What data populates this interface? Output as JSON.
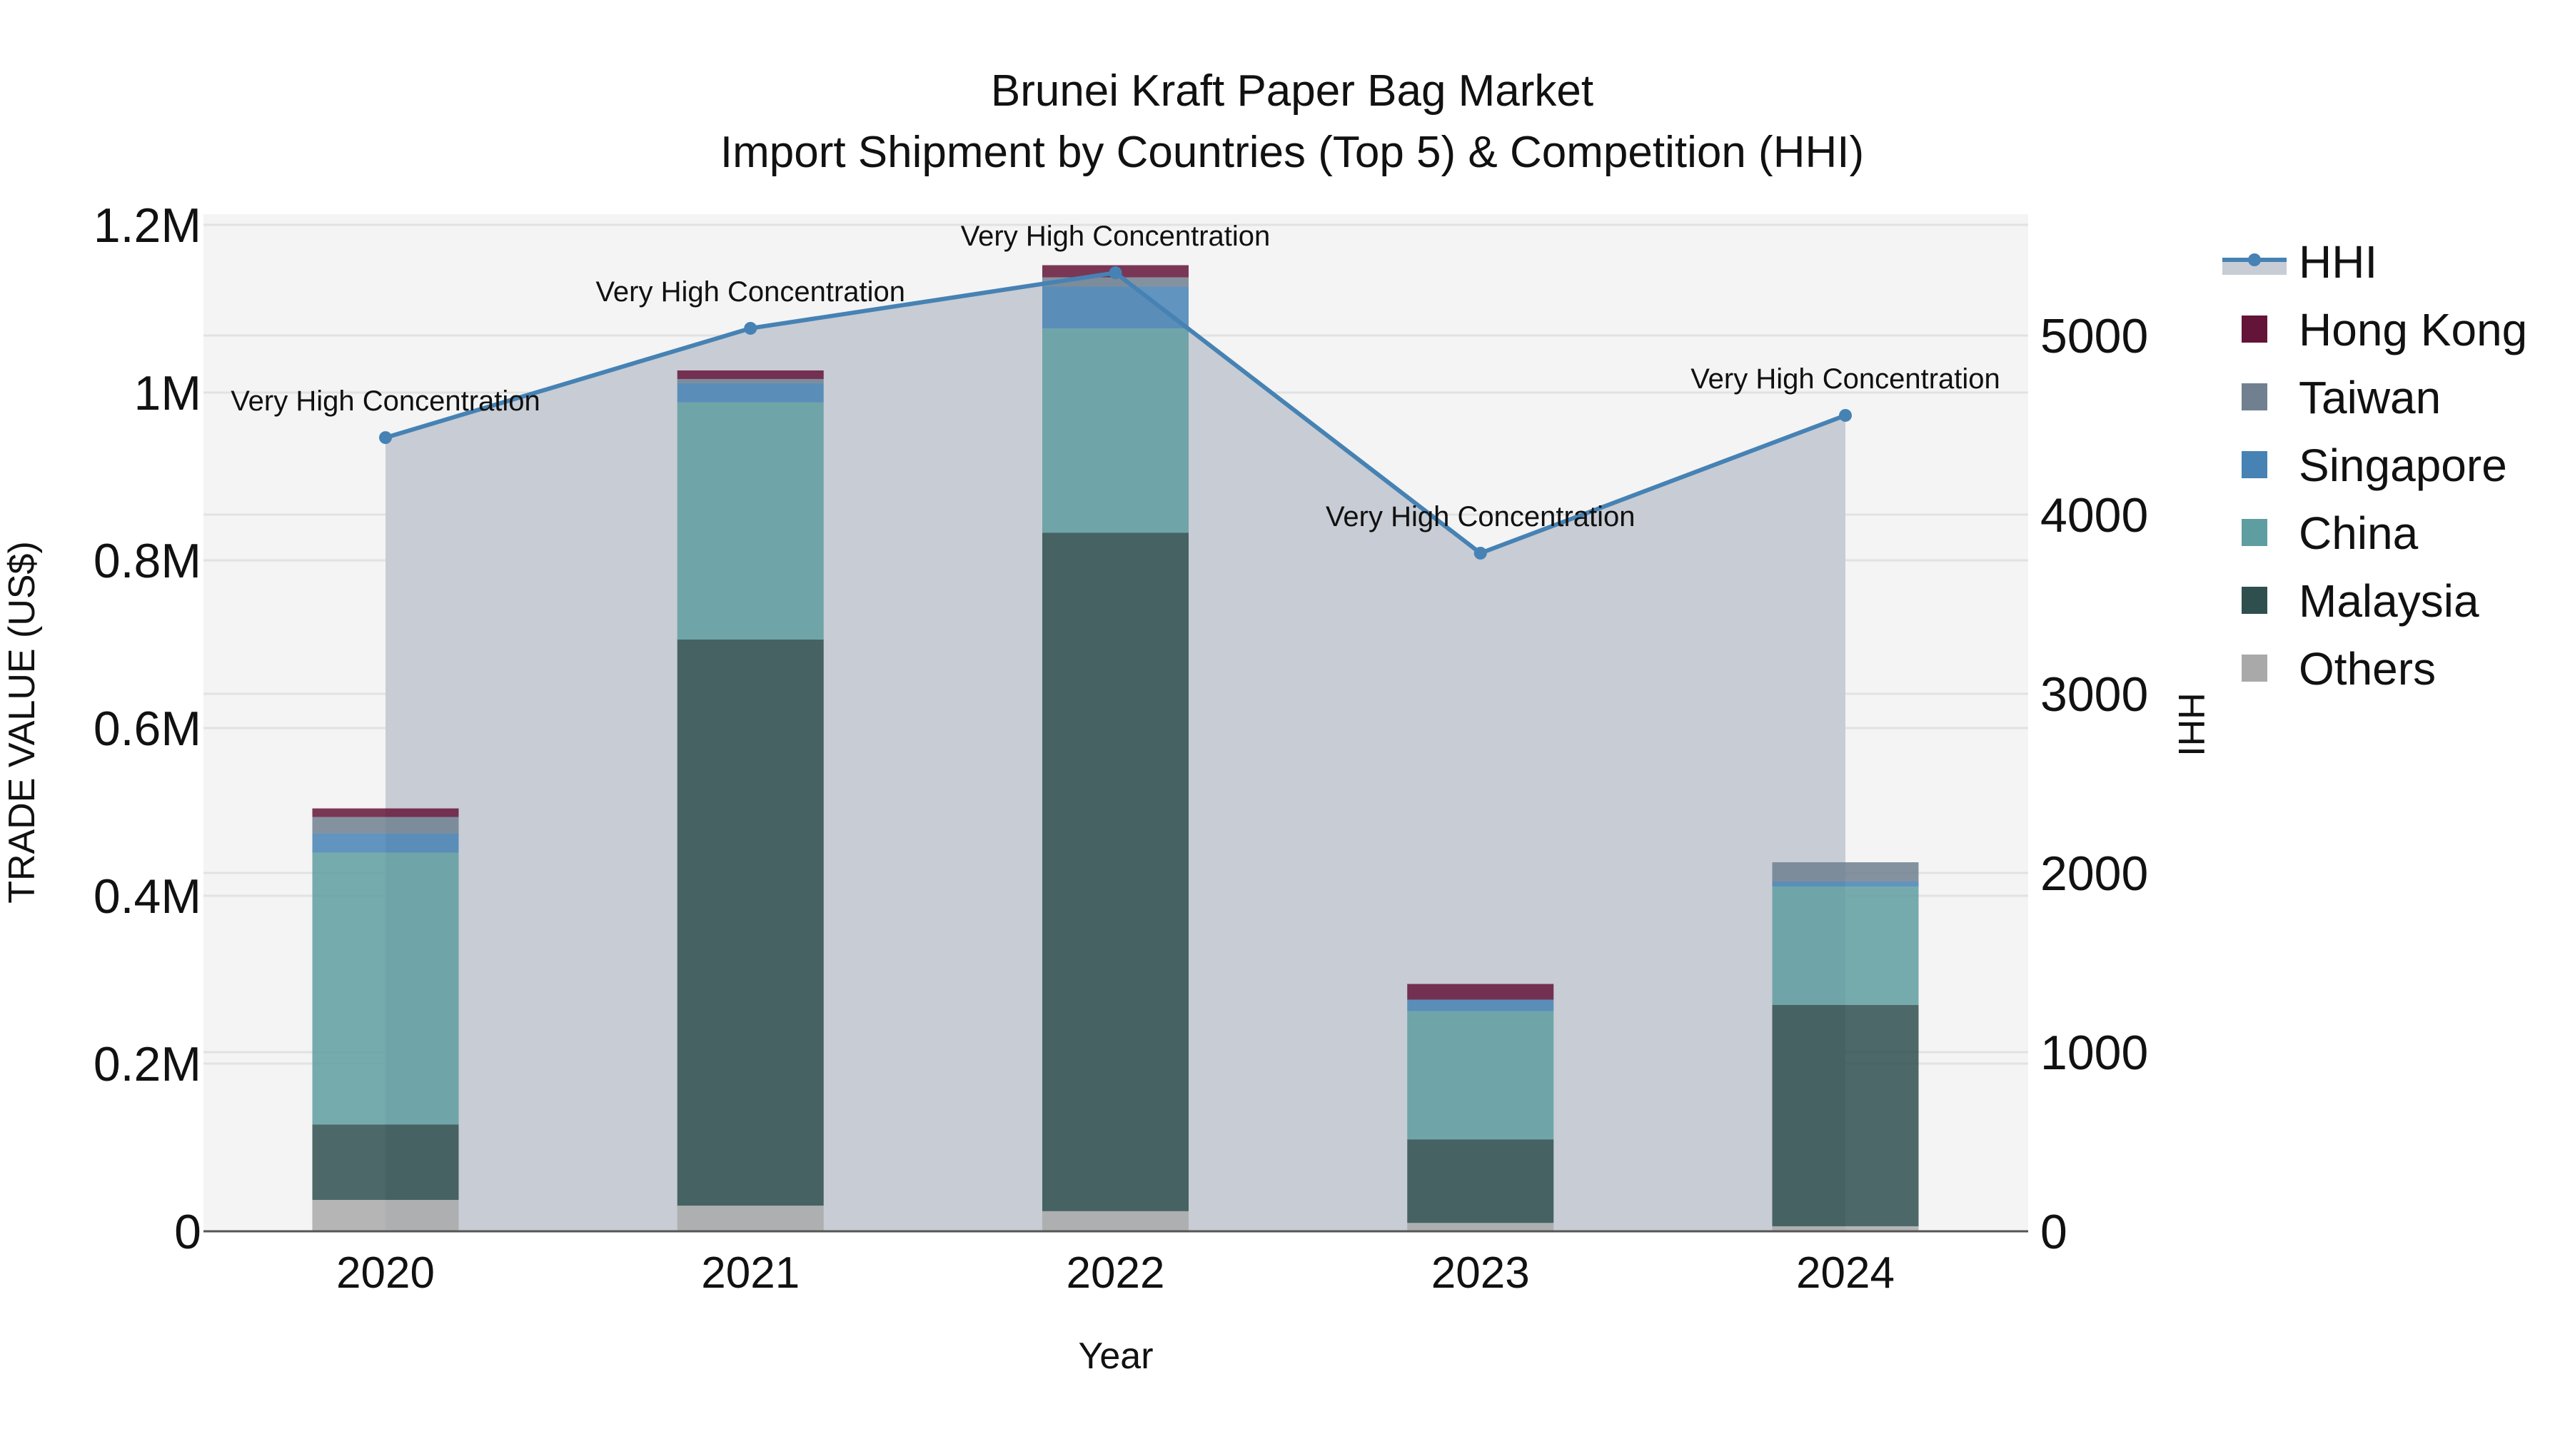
{
  "chart_data": {
    "type": "bar",
    "title": "Brunei Kraft Paper Bag Market",
    "subtitle": "Import Shipment by Countries (Top 5) & Competition (HHI)",
    "xlabel": "Year",
    "ylabel": "TRADE VALUE (US$)",
    "y2label": "HHI",
    "categories": [
      "2020",
      "2021",
      "2022",
      "2023",
      "2024"
    ],
    "ylim": [
      0,
      1200000
    ],
    "y2lim": [
      0,
      5680
    ],
    "y_ticks": [
      "0",
      "0.2M",
      "0.4M",
      "0.6M",
      "0.8M",
      "1M",
      "1.2M"
    ],
    "y_tick_values": [
      0,
      200000,
      400000,
      600000,
      800000,
      1000000,
      1200000
    ],
    "y2_ticks": [
      "0",
      "1000",
      "2000",
      "3000",
      "4000",
      "5000"
    ],
    "y2_tick_values": [
      0,
      1000,
      2000,
      3000,
      4000,
      5000
    ],
    "grid": true,
    "legend_position": "right",
    "stacked": true,
    "series": [
      {
        "name": "Others",
        "color": "#a9a9a9",
        "values": [
          37400,
          30600,
          24000,
          10000,
          6000
        ]
      },
      {
        "name": "Malaysia",
        "color": "#2f4f4f",
        "values": [
          90000,
          675000,
          809000,
          99600,
          264000
        ]
      },
      {
        "name": "China",
        "color": "#5f9ea0",
        "values": [
          324000,
          282600,
          243400,
          153000,
          141000
        ]
      },
      {
        "name": "Singapore",
        "color": "#4682b4",
        "values": [
          23000,
          23000,
          50000,
          13600,
          6000
        ]
      },
      {
        "name": "Taiwan",
        "color": "#708090",
        "values": [
          19600,
          5000,
          11000,
          0,
          23000
        ]
      },
      {
        "name": "Hong Kong",
        "color": "#641438",
        "values": [
          10200,
          10200,
          14500,
          18700,
          0
        ]
      }
    ],
    "line_series": {
      "name": "HHI",
      "axis": "right",
      "color": "#4682b4",
      "fill_color": "#c8ccd4",
      "values": [
        4430,
        5040,
        5350,
        3785,
        4554
      ],
      "annotations": [
        "Very High Concentration",
        "Very High Concentration",
        "Very High Concentration",
        "Very High Concentration",
        "Very High Concentration"
      ]
    },
    "legend": [
      "HHI",
      "Hong Kong",
      "Taiwan",
      "Singapore",
      "China",
      "Malaysia",
      "Others"
    ]
  },
  "header": {
    "title": "Brunei Kraft Paper Bag Market",
    "subtitle": "Import Shipment by Countries (Top 5) & Competition (HHI)"
  },
  "axes": {
    "x_title": "Year",
    "y_left_title": "TRADE VALUE (US$)",
    "y_right_title": "HHI"
  },
  "colors": {
    "plot_bg": "#f4f4f4",
    "grid": "#e2e2e2",
    "axis_line": "#555555",
    "hhi_line": "#4682b4",
    "hhi_fill": "#c8ccd4"
  }
}
